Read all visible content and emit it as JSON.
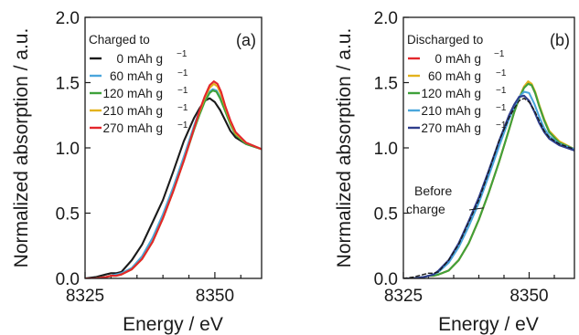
{
  "colors": {
    "black": "#1a1a1a",
    "blue": "#4aa6dc",
    "green": "#3ea13a",
    "orange": "#e3b21c",
    "red": "#e3262c",
    "navy": "#2e3d8c"
  },
  "chart_data": [
    {
      "type": "line",
      "panel_label": "(a)",
      "xlabel": "Energy / eV",
      "ylabel": "Normalized absorption / a.u.",
      "xlim": [
        8325,
        8359
      ],
      "ylim": [
        0.0,
        2.0
      ],
      "xticks": [
        8325,
        8350
      ],
      "xtick_labels": [
        "8325",
        "8350"
      ],
      "yticks": [
        0.0,
        0.5,
        1.0,
        1.5,
        2.0
      ],
      "ytick_labels": [
        "0.0",
        "0.5",
        "1.0",
        "1.5",
        "2.0"
      ],
      "legend": {
        "title": "Charged to",
        "unit_main": "mAh g",
        "unit_exp": "−1",
        "placement": "top-left"
      },
      "series": [
        {
          "name": "0",
          "color": "black",
          "dashed": false,
          "x": [
            8325,
            8327,
            8329,
            8330,
            8331,
            8332,
            8334,
            8336,
            8338,
            8340,
            8342,
            8344,
            8346,
            8347,
            8348,
            8349,
            8350,
            8351,
            8352,
            8353,
            8354,
            8356,
            8359
          ],
          "y": [
            0.0,
            0.01,
            0.03,
            0.04,
            0.04,
            0.05,
            0.14,
            0.26,
            0.43,
            0.6,
            0.82,
            1.05,
            1.23,
            1.3,
            1.36,
            1.38,
            1.35,
            1.29,
            1.21,
            1.13,
            1.08,
            1.03,
            0.99
          ]
        },
        {
          "name": "60",
          "color": "blue",
          "dashed": false,
          "x": [
            8325,
            8327,
            8329,
            8330,
            8331,
            8332,
            8334,
            8336,
            8338,
            8340,
            8342,
            8344,
            8346,
            8347,
            8348,
            8349,
            8349.6,
            8350.3,
            8351,
            8352,
            8353,
            8354,
            8356,
            8359
          ],
          "y": [
            0.0,
            0.0,
            0.01,
            0.02,
            0.03,
            0.04,
            0.08,
            0.17,
            0.31,
            0.49,
            0.7,
            0.93,
            1.17,
            1.28,
            1.37,
            1.43,
            1.45,
            1.44,
            1.39,
            1.29,
            1.19,
            1.11,
            1.04,
            0.99
          ]
        },
        {
          "name": "120",
          "color": "green",
          "dashed": false,
          "x": [
            8325,
            8327,
            8329,
            8330,
            8331,
            8332,
            8334,
            8336,
            8338,
            8340,
            8342,
            8344,
            8346,
            8347,
            8348,
            8349,
            8349.6,
            8350.3,
            8351,
            8352,
            8353,
            8354,
            8356,
            8359
          ],
          "y": [
            0.0,
            0.0,
            0.01,
            0.02,
            0.02,
            0.03,
            0.07,
            0.15,
            0.28,
            0.46,
            0.67,
            0.9,
            1.14,
            1.25,
            1.35,
            1.42,
            1.44,
            1.43,
            1.38,
            1.28,
            1.18,
            1.1,
            1.03,
            0.99
          ]
        },
        {
          "name": "210",
          "color": "orange",
          "dashed": false,
          "x": [
            8325,
            8327,
            8329,
            8330,
            8331,
            8332,
            8334,
            8336,
            8338,
            8340,
            8342,
            8344,
            8346,
            8347,
            8348,
            8349,
            8349.8,
            8350.5,
            8351.2,
            8352,
            8353,
            8354,
            8356,
            8359
          ],
          "y": [
            0.0,
            0.0,
            0.01,
            0.02,
            0.02,
            0.03,
            0.07,
            0.15,
            0.28,
            0.46,
            0.67,
            0.9,
            1.15,
            1.27,
            1.38,
            1.46,
            1.49,
            1.47,
            1.41,
            1.31,
            1.2,
            1.11,
            1.04,
            0.99
          ]
        },
        {
          "name": "270",
          "color": "red",
          "dashed": false,
          "x": [
            8325,
            8327,
            8329,
            8330,
            8331,
            8332,
            8334,
            8336,
            8338,
            8340,
            8342,
            8344,
            8346,
            8347,
            8348,
            8349,
            8349.8,
            8350.5,
            8351.2,
            8352,
            8353,
            8354,
            8356,
            8359
          ],
          "y": [
            0.0,
            0.0,
            0.01,
            0.02,
            0.02,
            0.03,
            0.07,
            0.15,
            0.28,
            0.46,
            0.67,
            0.9,
            1.15,
            1.28,
            1.39,
            1.48,
            1.51,
            1.49,
            1.43,
            1.32,
            1.21,
            1.12,
            1.04,
            0.99
          ]
        }
      ]
    },
    {
      "type": "line",
      "panel_label": "(b)",
      "xlabel": "Energy / eV",
      "ylabel": "Normalized absorption / a.u.",
      "xlim": [
        8325,
        8359
      ],
      "ylim": [
        0.0,
        2.0
      ],
      "xticks": [
        8325,
        8350
      ],
      "xtick_labels": [
        "8325",
        "8350"
      ],
      "yticks": [
        0.0,
        0.5,
        1.0,
        1.5,
        2.0
      ],
      "ytick_labels": [
        "0.0",
        "0.5",
        "1.0",
        "1.5",
        "2.0"
      ],
      "legend": {
        "title": "Discharged to",
        "unit_main": "mAh g",
        "unit_exp": "−1",
        "placement": "top-left"
      },
      "annotation": {
        "lines": [
          "Before",
          "charge"
        ],
        "points_to_x": 8341,
        "points_to_y": 0.54
      },
      "series": [
        {
          "name": "0",
          "color": "red",
          "dashed": false,
          "x": [
            8325,
            8327,
            8329,
            8330,
            8331,
            8332,
            8334,
            8336,
            8338,
            8340,
            8342,
            8344,
            8346,
            8347,
            8348,
            8349,
            8349.8,
            8350.5,
            8351.2,
            8352,
            8353,
            8354,
            8356,
            8359
          ],
          "y": [
            0.0,
            0.0,
            0.01,
            0.02,
            0.02,
            0.03,
            0.06,
            0.14,
            0.27,
            0.45,
            0.66,
            0.89,
            1.14,
            1.27,
            1.38,
            1.47,
            1.5,
            1.48,
            1.42,
            1.32,
            1.21,
            1.12,
            1.04,
            0.99
          ]
        },
        {
          "name": "60",
          "color": "orange",
          "dashed": false,
          "x": [
            8325,
            8327,
            8329,
            8330,
            8331,
            8332,
            8334,
            8336,
            8338,
            8340,
            8342,
            8344,
            8346,
            8347,
            8348,
            8349,
            8349.8,
            8350.5,
            8351.2,
            8352,
            8353,
            8354,
            8356,
            8359
          ],
          "y": [
            0.0,
            0.0,
            0.01,
            0.02,
            0.02,
            0.03,
            0.06,
            0.14,
            0.27,
            0.45,
            0.66,
            0.89,
            1.14,
            1.27,
            1.38,
            1.47,
            1.51,
            1.49,
            1.43,
            1.33,
            1.22,
            1.13,
            1.05,
            0.99
          ]
        },
        {
          "name": "120",
          "color": "green",
          "dashed": false,
          "x": [
            8325,
            8327,
            8329,
            8330,
            8331,
            8332,
            8334,
            8336,
            8338,
            8340,
            8342,
            8344,
            8346,
            8347,
            8348,
            8349,
            8349.8,
            8350.5,
            8351.2,
            8352,
            8353,
            8354,
            8356,
            8359
          ],
          "y": [
            0.0,
            0.0,
            0.01,
            0.02,
            0.02,
            0.03,
            0.06,
            0.14,
            0.27,
            0.45,
            0.66,
            0.89,
            1.14,
            1.27,
            1.38,
            1.46,
            1.49,
            1.48,
            1.42,
            1.32,
            1.21,
            1.12,
            1.04,
            0.99
          ]
        },
        {
          "name": "210",
          "color": "blue",
          "dashed": false,
          "x": [
            8325,
            8327,
            8329,
            8330,
            8331,
            8332,
            8334,
            8336,
            8338,
            8340,
            8342,
            8344,
            8346,
            8347,
            8348,
            8349,
            8350,
            8351,
            8352,
            8353,
            8354,
            8356,
            8359
          ],
          "y": [
            0.0,
            0.0,
            0.01,
            0.02,
            0.03,
            0.05,
            0.12,
            0.24,
            0.4,
            0.58,
            0.79,
            1.01,
            1.22,
            1.31,
            1.39,
            1.43,
            1.42,
            1.34,
            1.24,
            1.15,
            1.09,
            1.03,
            0.99
          ]
        },
        {
          "name": "270",
          "color": "navy",
          "dashed": false,
          "x": [
            8325,
            8327,
            8329,
            8330,
            8331,
            8332,
            8334,
            8336,
            8338,
            8340,
            8342,
            8344,
            8346,
            8347,
            8348,
            8349,
            8350,
            8351,
            8352,
            8353,
            8354,
            8356,
            8359
          ],
          "y": [
            0.0,
            0.0,
            0.01,
            0.02,
            0.03,
            0.06,
            0.14,
            0.27,
            0.44,
            0.62,
            0.83,
            1.05,
            1.25,
            1.33,
            1.39,
            1.4,
            1.36,
            1.28,
            1.19,
            1.12,
            1.07,
            1.02,
            0.98
          ]
        },
        {
          "name": "",
          "color": "black",
          "dashed": true,
          "x": [
            8325,
            8327,
            8329,
            8330,
            8331,
            8332,
            8334,
            8336,
            8338,
            8340,
            8342,
            8344,
            8346,
            8347,
            8348,
            8349,
            8350,
            8351,
            8352,
            8353,
            8354,
            8356,
            8359
          ],
          "y": [
            0.0,
            0.01,
            0.03,
            0.04,
            0.04,
            0.05,
            0.14,
            0.26,
            0.43,
            0.6,
            0.82,
            1.05,
            1.23,
            1.3,
            1.36,
            1.38,
            1.35,
            1.29,
            1.21,
            1.13,
            1.08,
            1.03,
            0.99
          ]
        }
      ]
    }
  ]
}
